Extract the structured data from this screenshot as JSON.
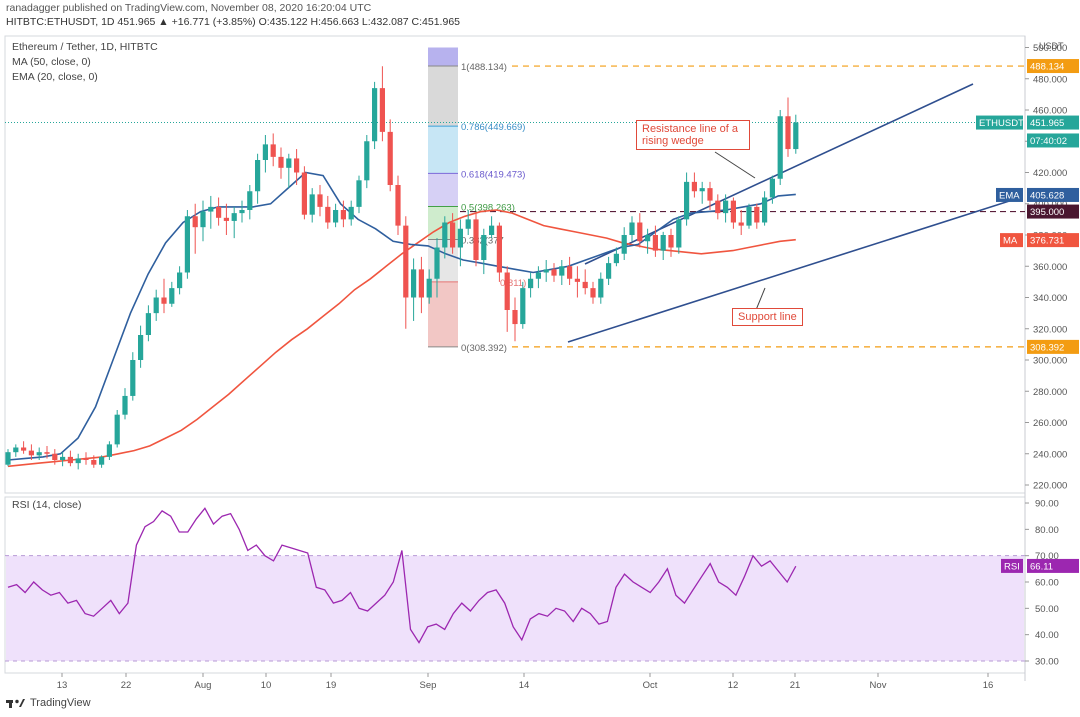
{
  "header": {
    "publisher": "ranadagger published on TradingView.com, November 08, 2020 16:20:04 UTC",
    "symbol_line": "HITBTC:ETHUSDT, 1D  451.965  ▲ +16.771 (+3.85%)  O:435.122  H:456.663  L:432.087  C:451.965"
  },
  "legend": {
    "title": "Ethereum / Tether, 1D, HITBTC",
    "ma": "MA (50, close, 0)",
    "ema": "EMA (20, close, 0)",
    "rsi": "RSI (14, close)"
  },
  "footer": {
    "brand": "TradingView"
  },
  "colors": {
    "up": "#26a69a",
    "down": "#ef5350",
    "ma": "#f0553f",
    "ema": "#2f5f9e",
    "trend": "#2f4f8f",
    "orange": "#f39c12",
    "rsi": "#9c27b0",
    "rsi_band": "#efe1fb"
  },
  "price_axis": {
    "unit": "USDT",
    "ticks": [
      "500.000",
      "480.000",
      "460.000",
      "440.000",
      "420.000",
      "400.000",
      "380.000",
      "360.000",
      "340.000",
      "320.000",
      "300.000",
      "280.000",
      "260.000",
      "240.000",
      "220.000"
    ]
  },
  "rsi_axis": {
    "ticks": [
      "90.00",
      "80.00",
      "70.00",
      "60.00",
      "50.00",
      "40.00",
      "30.00"
    ]
  },
  "time_axis": {
    "ticks": [
      "13",
      "22",
      "Aug",
      "10",
      "19",
      "Sep",
      "14",
      "Oct",
      "12",
      "21",
      "Nov",
      "16"
    ]
  },
  "price_tags": {
    "top_line": "488.134",
    "symbol": "ETHUSDT",
    "last": "451.965",
    "countdown": "07:40:02",
    "ema_label": "EMA",
    "ema_value": "405.628",
    "level": "395.000",
    "ma_label": "MA",
    "ma_value": "376.731",
    "bottom_line": "308.392",
    "rsi_label": "RSI",
    "rsi_value": "66.11"
  },
  "fib_labels": {
    "f1": "1(488.134)",
    "f0786": "0.786(449.669)",
    "f0618": "0.618(419.473)",
    "f05": "0.5(398.263)",
    "f0382": "0.382(377",
    "f0236": "0.811)",
    "f0": "0(308.392)"
  },
  "annotations": {
    "resistance": "Resistance line of a rising wedge",
    "support": "Support line"
  },
  "chart_data": {
    "type": "candlestick",
    "title": "Ethereum / Tether, 1D, HITBTC",
    "symbol": "ETHUSDT",
    "ylim": [
      210,
      500
    ],
    "rsi_ylim": [
      25,
      95
    ],
    "candles": [
      [
        233,
        243,
        232,
        241
      ],
      [
        241,
        246,
        238,
        244
      ],
      [
        244,
        248,
        240,
        242
      ],
      [
        242,
        246,
        236,
        239
      ],
      [
        239,
        244,
        236,
        241
      ],
      [
        241,
        245,
        237,
        240
      ],
      [
        240,
        243,
        233,
        236
      ],
      [
        236,
        241,
        232,
        238
      ],
      [
        238,
        242,
        232,
        234
      ],
      [
        234,
        240,
        230,
        237
      ],
      [
        237,
        241,
        233,
        236
      ],
      [
        236,
        239,
        231,
        233
      ],
      [
        233,
        239,
        231,
        238
      ],
      [
        238,
        248,
        236,
        246
      ],
      [
        246,
        268,
        244,
        265
      ],
      [
        265,
        282,
        262,
        277
      ],
      [
        277,
        305,
        274,
        300
      ],
      [
        300,
        322,
        295,
        316
      ],
      [
        316,
        335,
        312,
        330
      ],
      [
        330,
        345,
        325,
        340
      ],
      [
        340,
        352,
        330,
        336
      ],
      [
        336,
        350,
        334,
        346
      ],
      [
        346,
        360,
        342,
        356
      ],
      [
        356,
        396,
        352,
        392
      ],
      [
        392,
        400,
        368,
        385
      ],
      [
        385,
        402,
        376,
        395
      ],
      [
        395,
        405,
        384,
        398
      ],
      [
        398,
        404,
        386,
        391
      ],
      [
        391,
        400,
        380,
        389
      ],
      [
        389,
        398,
        378,
        394
      ],
      [
        394,
        402,
        388,
        396
      ],
      [
        396,
        412,
        390,
        408
      ],
      [
        408,
        432,
        400,
        428
      ],
      [
        428,
        444,
        420,
        438
      ],
      [
        438,
        445,
        424,
        430
      ],
      [
        430,
        436,
        416,
        423
      ],
      [
        423,
        432,
        410,
        429
      ],
      [
        429,
        435,
        412,
        420
      ],
      [
        420,
        424,
        390,
        393
      ],
      [
        393,
        410,
        388,
        406
      ],
      [
        406,
        412,
        392,
        398
      ],
      [
        398,
        405,
        384,
        388
      ],
      [
        388,
        400,
        385,
        396
      ],
      [
        396,
        402,
        385,
        390
      ],
      [
        390,
        402,
        386,
        398
      ],
      [
        398,
        418,
        394,
        415
      ],
      [
        415,
        444,
        410,
        440
      ],
      [
        440,
        478,
        435,
        474
      ],
      [
        474,
        488,
        440,
        446
      ],
      [
        446,
        454,
        408,
        412
      ],
      [
        412,
        418,
        380,
        386
      ],
      [
        386,
        392,
        320,
        340
      ],
      [
        340,
        365,
        325,
        358
      ],
      [
        358,
        366,
        330,
        340
      ],
      [
        340,
        358,
        336,
        352
      ],
      [
        352,
        378,
        340,
        372
      ],
      [
        372,
        392,
        365,
        388
      ],
      [
        388,
        394,
        368,
        372
      ],
      [
        372,
        390,
        360,
        384
      ],
      [
        384,
        396,
        380,
        390
      ],
      [
        390,
        394,
        360,
        364
      ],
      [
        364,
        384,
        355,
        380
      ],
      [
        380,
        392,
        378,
        386
      ],
      [
        386,
        388,
        350,
        356
      ],
      [
        356,
        360,
        318,
        332
      ],
      [
        332,
        340,
        312,
        323
      ],
      [
        323,
        350,
        320,
        346
      ],
      [
        346,
        356,
        340,
        352
      ],
      [
        352,
        360,
        346,
        356
      ],
      [
        356,
        364,
        350,
        358
      ],
      [
        358,
        362,
        350,
        354
      ],
      [
        354,
        364,
        348,
        360
      ],
      [
        360,
        366,
        348,
        352
      ],
      [
        352,
        360,
        340,
        350
      ],
      [
        350,
        358,
        342,
        346
      ],
      [
        346,
        350,
        336,
        340
      ],
      [
        340,
        356,
        336,
        352
      ],
      [
        352,
        366,
        348,
        362
      ],
      [
        362,
        372,
        360,
        368
      ],
      [
        368,
        385,
        364,
        380
      ],
      [
        380,
        392,
        376,
        388
      ],
      [
        388,
        394,
        372,
        376
      ],
      [
        376,
        384,
        368,
        380
      ],
      [
        380,
        386,
        366,
        370
      ],
      [
        370,
        382,
        364,
        380
      ],
      [
        380,
        384,
        366,
        372
      ],
      [
        372,
        392,
        368,
        390
      ],
      [
        390,
        420,
        386,
        414
      ],
      [
        414,
        420,
        404,
        408
      ],
      [
        408,
        414,
        400,
        410
      ],
      [
        410,
        414,
        396,
        402
      ],
      [
        402,
        406,
        390,
        394
      ],
      [
        394,
        406,
        388,
        402
      ],
      [
        402,
        404,
        384,
        388
      ],
      [
        388,
        396,
        380,
        386
      ],
      [
        386,
        400,
        384,
        398
      ],
      [
        398,
        400,
        384,
        388
      ],
      [
        388,
        408,
        386,
        404
      ],
      [
        404,
        418,
        400,
        416
      ],
      [
        416,
        460,
        412,
        456
      ],
      [
        456,
        468,
        430,
        435
      ],
      [
        435,
        457,
        432,
        452
      ]
    ],
    "ma_50": [
      232,
      233,
      234,
      235,
      236,
      237,
      238,
      240,
      242,
      245,
      250,
      255,
      262,
      270,
      278,
      287,
      296,
      305,
      313,
      320,
      328,
      336,
      345,
      352,
      360,
      368,
      375,
      382,
      388,
      392,
      395,
      396,
      394,
      390,
      386,
      384,
      382,
      380,
      378,
      375,
      373,
      371,
      370,
      369,
      368,
      369,
      370,
      372,
      374,
      376,
      377
    ],
    "ema_20": [
      236,
      237,
      238,
      240,
      250,
      270,
      300,
      330,
      355,
      375,
      388,
      395,
      398,
      398,
      398,
      400,
      410,
      420,
      418,
      400,
      390,
      384,
      376,
      374,
      373,
      368,
      364,
      362,
      360,
      358,
      356,
      358,
      360,
      364,
      368,
      372,
      374,
      382,
      390,
      394,
      395,
      396,
      398,
      400,
      405,
      406
    ],
    "rsi": [
      58,
      59,
      56,
      60,
      57,
      55,
      56,
      52,
      53,
      48,
      47,
      50,
      53,
      48,
      52,
      74,
      81,
      83,
      87,
      85,
      79,
      79,
      84,
      88,
      82,
      85,
      86,
      80,
      72,
      74,
      70,
      68,
      74,
      73,
      72,
      71,
      58,
      57,
      52,
      53,
      56,
      50,
      49,
      52,
      55,
      60,
      72,
      42,
      37,
      43,
      44,
      42,
      48,
      52,
      49,
      53,
      56,
      57,
      52,
      43,
      38,
      46,
      48,
      47,
      50,
      49,
      45,
      50,
      48,
      44,
      45,
      58,
      63,
      60,
      58,
      56,
      60,
      65,
      55,
      52,
      57,
      62,
      67,
      60,
      58,
      55,
      62,
      70,
      66,
      68,
      64,
      60,
      66
    ],
    "rsi_last": 66.11
  }
}
